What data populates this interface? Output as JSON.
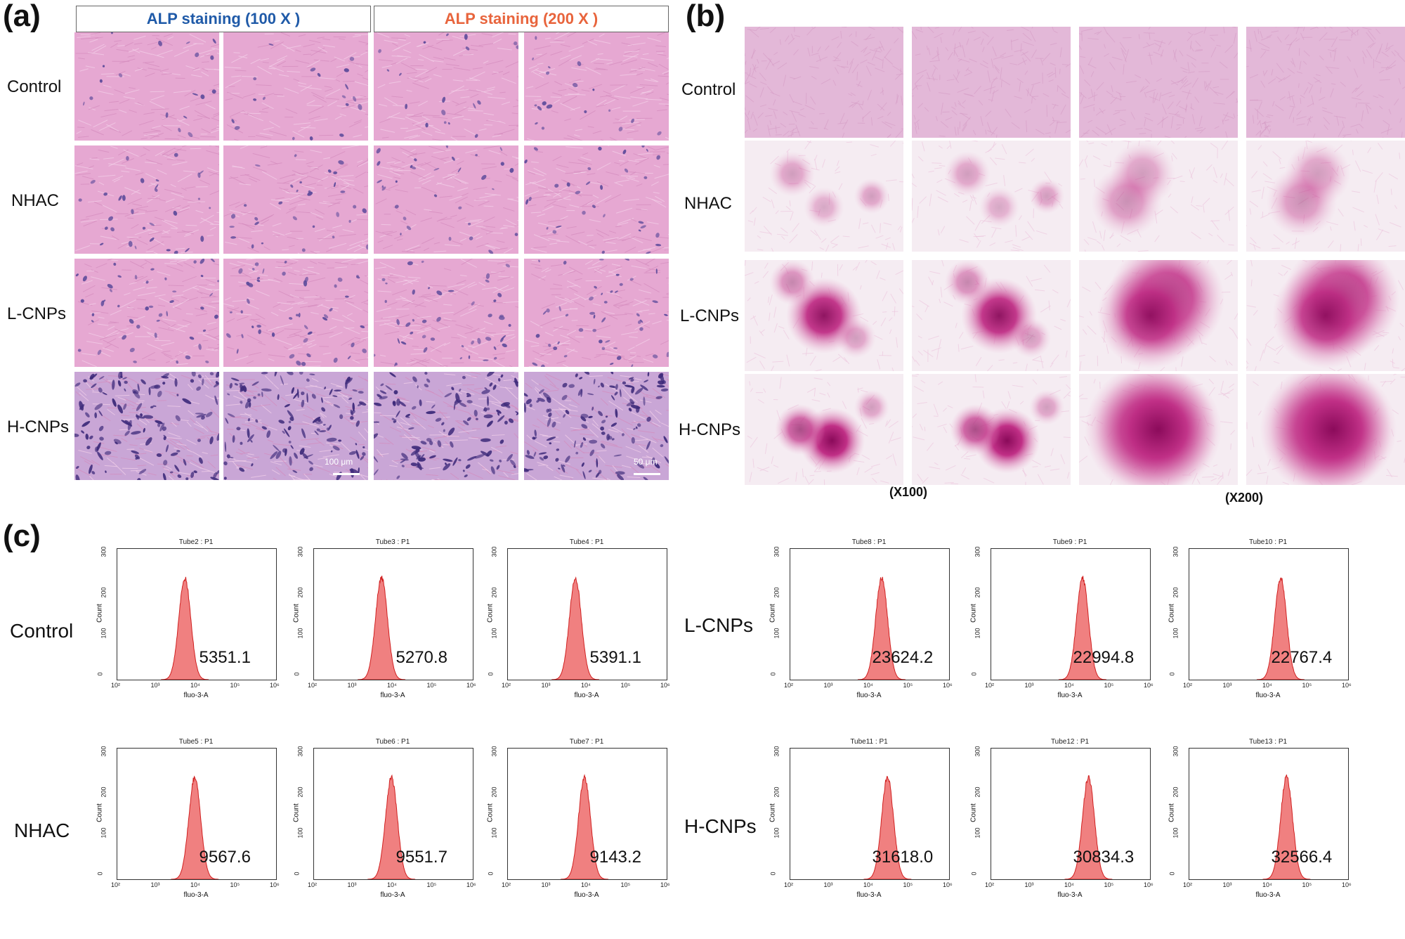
{
  "panel_a": {
    "label": "(a)",
    "header_100": "ALP staining (100 X )",
    "header_200": "ALP staining (200 X )",
    "header_100_color": "#1f5aa8",
    "header_200_color": "#e8643c",
    "rows": [
      "Control",
      "NHAC",
      "L-CNPs",
      "H-CNPs"
    ],
    "scale_100": "100 μm",
    "scale_200": "50 μm"
  },
  "panel_b": {
    "label": "(b)",
    "rows": [
      "Control",
      "NHAC",
      "L-CNPs",
      "H-CNPs"
    ],
    "mag_100": "(X100)",
    "mag_200": "(X200)"
  },
  "panel_c": {
    "label": "(c)",
    "groups": [
      "Control",
      "NHAC",
      "L-CNPs",
      "H-CNPs"
    ],
    "y_label": "Count",
    "x_label": "fluo-3-A",
    "y_ticks": [
      "0",
      "100",
      "200",
      "300"
    ],
    "x_ticks": [
      "10²",
      "10³",
      "10⁴",
      "10⁵",
      "10⁶"
    ],
    "histogram_color": "#f08080",
    "plots": [
      {
        "title": "Tube2 : P1",
        "value": "5351.1",
        "peak_log": 3.7
      },
      {
        "title": "Tube3 : P1",
        "value": "5270.8",
        "peak_log": 3.7
      },
      {
        "title": "Tube4 : P1",
        "value": "5391.1",
        "peak_log": 3.7
      },
      {
        "title": "Tube5 : P1",
        "value": "9567.6",
        "peak_log": 3.95
      },
      {
        "title": "Tube6 : P1",
        "value": "9551.7",
        "peak_log": 3.95
      },
      {
        "title": "Tube7 : P1",
        "value": "9143.2",
        "peak_log": 3.93
      },
      {
        "title": "Tube8 : P1",
        "value": "23624.2",
        "peak_log": 4.3
      },
      {
        "title": "Tube9 : P1",
        "value": "22994.8",
        "peak_log": 4.3
      },
      {
        "title": "Tube10 : P1",
        "value": "22767.4",
        "peak_log": 4.3
      },
      {
        "title": "Tube11 : P1",
        "value": "31618.0",
        "peak_log": 4.45
      },
      {
        "title": "Tube12 : P1",
        "value": "30834.3",
        "peak_log": 4.45
      },
      {
        "title": "Tube13 : P1",
        "value": "32566.4",
        "peak_log": 4.45
      }
    ]
  }
}
